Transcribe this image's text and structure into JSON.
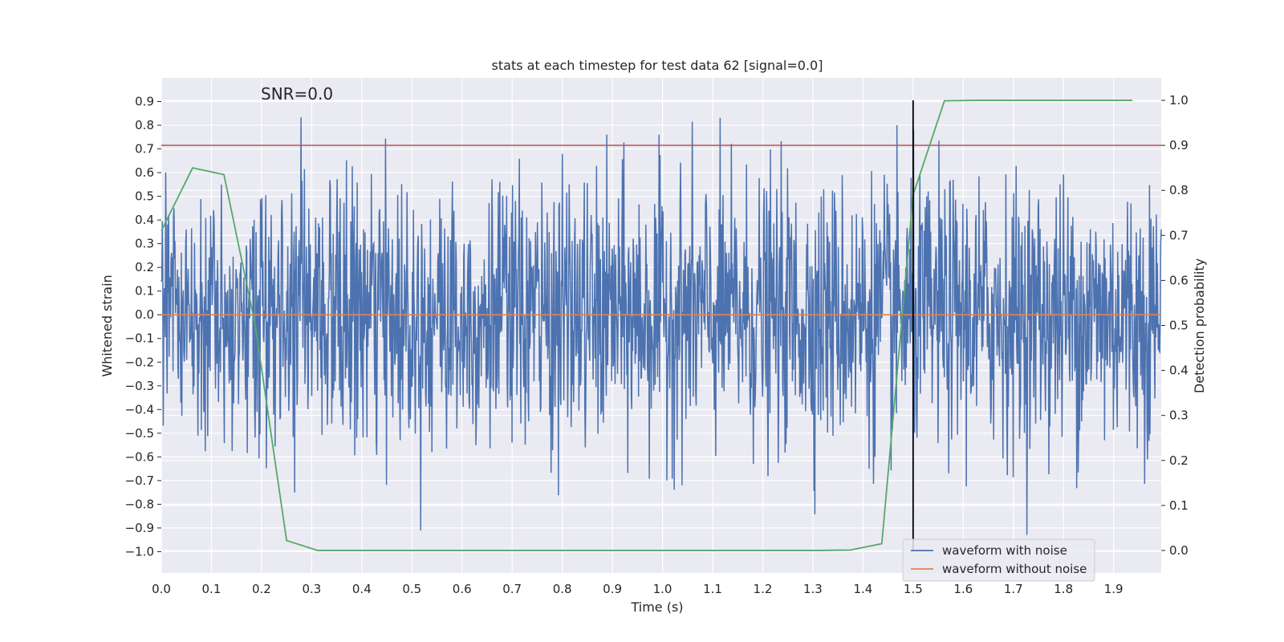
{
  "chart_data": {
    "type": "line",
    "title": "stats at each timestep for test data 62 [signal=0.0]",
    "xlabel": "Time (s)",
    "ylabel": "Whitened strain",
    "y2label": "Detection probability",
    "xlim": [
      0.0,
      1.995
    ],
    "ylim": [
      -1.09,
      1.0
    ],
    "y2lim": [
      -0.05,
      1.05
    ],
    "x_ticks": [
      "0.0",
      "0.1",
      "0.2",
      "0.3",
      "0.4",
      "0.5",
      "0.6",
      "0.7",
      "0.8",
      "0.9",
      "1.0",
      "1.1",
      "1.2",
      "1.3",
      "1.4",
      "1.5",
      "1.6",
      "1.7",
      "1.8",
      "1.9"
    ],
    "y_ticks": [
      "0.9",
      "0.8",
      "0.7",
      "0.6",
      "0.5",
      "0.4",
      "0.3",
      "0.2",
      "0.1",
      "0.0",
      "−0.1",
      "−0.2",
      "−0.3",
      "−0.4",
      "−0.5",
      "−0.6",
      "−0.7",
      "−0.8",
      "−0.9",
      "−1.0"
    ],
    "y2_ticks": [
      "1.0",
      "0.9",
      "0.8",
      "0.7",
      "0.6",
      "0.5",
      "0.4",
      "0.3",
      "0.2",
      "0.1",
      "0.0"
    ],
    "grid": true,
    "legend_position": "lower right",
    "annotation": "SNR=0.0",
    "threshold_line": {
      "y2": 0.9,
      "color": "#c44e52"
    },
    "vertical_line": {
      "x": 1.5,
      "color": "#000000"
    },
    "series": [
      {
        "name": "waveform with noise",
        "color": "#4c72b0",
        "axis": "left",
        "kind": "noise",
        "samples": 2048,
        "approx_std": 0.28,
        "approx_range": [
          -0.96,
          0.89
        ]
      },
      {
        "name": "waveform without noise",
        "color": "#dd8452",
        "axis": "left",
        "x": [
          0.0,
          1.995
        ],
        "y": [
          0.0,
          0.0
        ]
      },
      {
        "color": "#55a868",
        "axis": "right",
        "x": [
          0.0,
          0.0625,
          0.125,
          0.1875,
          0.25,
          0.3125,
          0.375,
          0.4375,
          0.5,
          0.5625,
          0.625,
          0.6875,
          0.75,
          0.8125,
          0.875,
          0.9375,
          1.0,
          1.0625,
          1.125,
          1.1875,
          1.25,
          1.3125,
          1.375,
          1.4375,
          1.5,
          1.5625,
          1.625,
          1.6875,
          1.75,
          1.8125,
          1.875,
          1.9375
        ],
        "y": [
          0.71,
          0.85,
          0.835,
          0.5,
          0.022,
          0.0,
          0.0,
          0.0,
          0.0,
          0.0,
          0.0,
          0.0,
          0.0,
          0.0,
          0.0,
          0.0,
          0.0,
          0.0,
          0.0,
          0.0,
          0.0,
          0.0,
          0.001,
          0.015,
          0.79,
          0.999,
          1.0,
          1.0,
          1.0,
          1.0,
          1.0,
          1.0
        ]
      }
    ]
  }
}
